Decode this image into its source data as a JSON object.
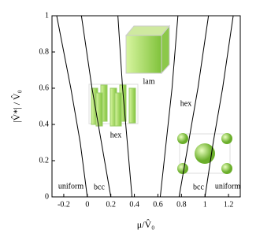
{
  "chart_data": {
    "type": "line",
    "x_label": "μ/V̂₀",
    "y_label": "|V̂*| / V̂₀",
    "xlim": [
      -0.3,
      1.3
    ],
    "ylim": [
      0,
      1
    ],
    "xticks": [
      -0.2,
      0,
      0.2,
      0.4,
      0.6,
      0.8,
      1,
      1.2
    ],
    "yticks": [
      0,
      0.2,
      0.4,
      0.6,
      0.8,
      1
    ],
    "color": "#000000",
    "series": [
      {
        "x": [
          0.0,
          -0.06,
          -0.14,
          -0.26
        ],
        "y": [
          0,
          0.3,
          0.6,
          1
        ]
      },
      {
        "x": [
          0.2,
          0.12,
          0.04,
          -0.05
        ],
        "y": [
          0,
          0.3,
          0.6,
          1
        ]
      },
      {
        "x": [
          0.38,
          0.34,
          0.3,
          0.26
        ],
        "y": [
          0,
          0.3,
          0.6,
          1
        ]
      },
      {
        "x": [
          0.62,
          0.67,
          0.72,
          0.77
        ],
        "y": [
          0,
          0.3,
          0.6,
          1
        ]
      },
      {
        "x": [
          0.78,
          0.86,
          0.94,
          1.03
        ],
        "y": [
          0,
          0.3,
          0.6,
          1
        ]
      },
      {
        "x": [
          1.0,
          1.07,
          1.15,
          1.24
        ],
        "y": [
          0,
          0.3,
          0.6,
          1
        ]
      }
    ],
    "annotations": [
      "uniform",
      "bcc",
      "hex",
      "lam",
      "hex",
      "bcc",
      "uniform"
    ]
  }
}
